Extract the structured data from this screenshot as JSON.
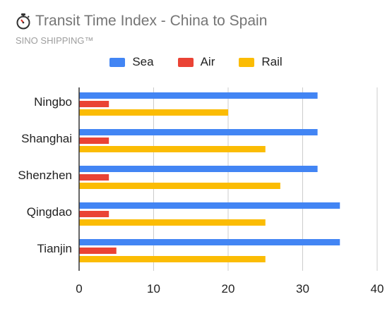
{
  "chart_data": {
    "type": "bar",
    "orientation": "horizontal",
    "title": "Transit Time Index - China to Spain",
    "subtitle": "SINO SHIPPING™",
    "categories": [
      "Ningbo",
      "Shanghai",
      "Shenzhen",
      "Qingdao",
      "Tianjin"
    ],
    "series": [
      {
        "name": "Sea",
        "color": "#4285f4",
        "values": [
          32,
          32,
          32,
          35,
          35
        ]
      },
      {
        "name": "Air",
        "color": "#ea4335",
        "values": [
          4,
          4,
          4,
          4,
          5
        ]
      },
      {
        "name": "Rail",
        "color": "#fbbc04",
        "values": [
          20,
          25,
          27,
          25,
          25
        ]
      }
    ],
    "xlim": [
      0,
      40
    ],
    "xticks": [
      0,
      10,
      20,
      30,
      40
    ],
    "grid": true,
    "legend_position": "top",
    "icon": "stopwatch-icon"
  }
}
